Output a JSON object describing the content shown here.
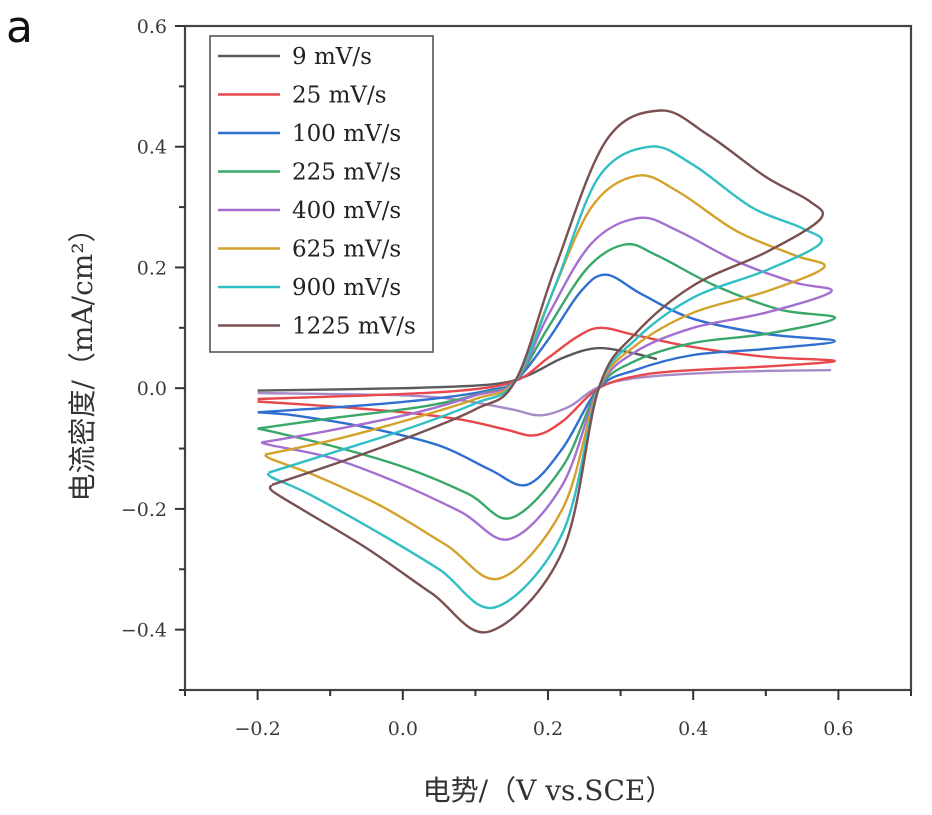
{
  "panel_label": "a",
  "chart_data": {
    "type": "line",
    "title": "",
    "xlabel": "电势/（V vs.SCE）",
    "ylabel": "电流密度/（mA/cm²）",
    "xlim": [
      -0.3,
      0.7
    ],
    "ylim": [
      -0.5,
      0.6
    ],
    "xticks": [
      -0.2,
      0.0,
      0.2,
      0.4,
      0.6
    ],
    "xtick_labels": [
      "-0.2",
      "0.0",
      "0.2",
      "0.4",
      "0.6"
    ],
    "xminor": [
      -0.3,
      -0.1,
      0.1,
      0.3,
      0.5,
      0.7
    ],
    "yticks": [
      -0.4,
      -0.2,
      0.0,
      0.2,
      0.4,
      0.6
    ],
    "ytick_labels": [
      "-0.4",
      "-0.2",
      "0.0",
      "0.2",
      "0.4",
      "0.6"
    ],
    "yminor": [
      -0.5,
      -0.3,
      -0.1,
      0.1,
      0.3,
      0.5
    ],
    "grid": false,
    "legend_position": "top-left",
    "series": [
      {
        "name": "9 mV/s",
        "color": "#5a5a5a",
        "points": [
          [
            -0.2,
            -0.004
          ],
          [
            0.0,
            0.0
          ],
          [
            0.12,
            0.006
          ],
          [
            0.17,
            0.02
          ],
          [
            0.22,
            0.05
          ],
          [
            0.265,
            0.066
          ],
          [
            0.31,
            0.06
          ],
          [
            0.35,
            0.048
          ]
        ]
      },
      {
        "name": "9 mV/s (return)",
        "color": "#a78bc9",
        "legend": false,
        "points": [
          [
            0.59,
            0.03
          ],
          [
            0.45,
            0.027
          ],
          [
            0.33,
            0.018
          ],
          [
            0.27,
            0.002
          ],
          [
            0.23,
            -0.03
          ],
          [
            0.19,
            -0.045
          ],
          [
            0.15,
            -0.035
          ],
          [
            0.08,
            -0.02
          ],
          [
            0.0,
            -0.012
          ],
          [
            -0.2,
            -0.008
          ]
        ]
      },
      {
        "name": "25 mV/s",
        "color": "#e8474b",
        "points": [
          [
            -0.2,
            -0.018
          ],
          [
            -0.05,
            -0.012
          ],
          [
            0.08,
            -0.004
          ],
          [
            0.155,
            0.012
          ],
          [
            0.2,
            0.05
          ],
          [
            0.24,
            0.085
          ],
          [
            0.272,
            0.1
          ],
          [
            0.32,
            0.088
          ],
          [
            0.4,
            0.068
          ],
          [
            0.5,
            0.052
          ],
          [
            0.595,
            0.045
          ],
          [
            0.5,
            0.036
          ],
          [
            0.4,
            0.03
          ],
          [
            0.33,
            0.022
          ],
          [
            0.27,
            0.0
          ],
          [
            0.22,
            -0.055
          ],
          [
            0.182,
            -0.078
          ],
          [
            0.14,
            -0.068
          ],
          [
            0.08,
            -0.052
          ],
          [
            0.0,
            -0.04
          ],
          [
            -0.1,
            -0.03
          ],
          [
            -0.2,
            -0.022
          ]
        ]
      },
      {
        "name": "100 mV/s",
        "color": "#2f6fd0",
        "points": [
          [
            -0.2,
            -0.04
          ],
          [
            -0.05,
            -0.028
          ],
          [
            0.06,
            -0.015
          ],
          [
            0.12,
            -0.003
          ],
          [
            0.155,
            0.012
          ],
          [
            0.2,
            0.08
          ],
          [
            0.245,
            0.16
          ],
          [
            0.28,
            0.188
          ],
          [
            0.33,
            0.155
          ],
          [
            0.4,
            0.115
          ],
          [
            0.5,
            0.09
          ],
          [
            0.595,
            0.078
          ],
          [
            0.5,
            0.065
          ],
          [
            0.4,
            0.055
          ],
          [
            0.32,
            0.03
          ],
          [
            0.27,
            0.0
          ],
          [
            0.22,
            -0.1
          ],
          [
            0.171,
            -0.16
          ],
          [
            0.12,
            -0.135
          ],
          [
            0.05,
            -0.095
          ],
          [
            -0.05,
            -0.065
          ],
          [
            -0.15,
            -0.045
          ],
          [
            -0.2,
            -0.04
          ]
        ]
      },
      {
        "name": "225 mV/s",
        "color": "#3aa86a",
        "points": [
          [
            -0.2,
            -0.067
          ],
          [
            -0.1,
            -0.05
          ],
          [
            0.03,
            -0.03
          ],
          [
            0.11,
            -0.008
          ],
          [
            0.155,
            0.012
          ],
          [
            0.2,
            0.1
          ],
          [
            0.255,
            0.2
          ],
          [
            0.306,
            0.238
          ],
          [
            0.35,
            0.22
          ],
          [
            0.43,
            0.17
          ],
          [
            0.52,
            0.13
          ],
          [
            0.595,
            0.116
          ],
          [
            0.5,
            0.09
          ],
          [
            0.4,
            0.075
          ],
          [
            0.32,
            0.045
          ],
          [
            0.27,
            0.0
          ],
          [
            0.22,
            -0.13
          ],
          [
            0.149,
            -0.215
          ],
          [
            0.09,
            -0.175
          ],
          [
            0.0,
            -0.13
          ],
          [
            -0.1,
            -0.095
          ],
          [
            -0.18,
            -0.072
          ],
          [
            -0.2,
            -0.067
          ]
        ]
      },
      {
        "name": "400 mV/s",
        "color": "#a56fd0",
        "points": [
          [
            -0.195,
            -0.09
          ],
          [
            -0.1,
            -0.07
          ],
          [
            0.02,
            -0.04
          ],
          [
            0.1,
            -0.012
          ],
          [
            0.155,
            0.012
          ],
          [
            0.2,
            0.12
          ],
          [
            0.26,
            0.24
          ],
          [
            0.325,
            0.282
          ],
          [
            0.38,
            0.26
          ],
          [
            0.46,
            0.21
          ],
          [
            0.54,
            0.175
          ],
          [
            0.59,
            0.16
          ],
          [
            0.5,
            0.125
          ],
          [
            0.4,
            0.1
          ],
          [
            0.32,
            0.06
          ],
          [
            0.27,
            0.0
          ],
          [
            0.22,
            -0.16
          ],
          [
            0.147,
            -0.25
          ],
          [
            0.08,
            -0.205
          ],
          [
            -0.01,
            -0.155
          ],
          [
            -0.1,
            -0.115
          ],
          [
            -0.18,
            -0.095
          ],
          [
            -0.195,
            -0.09
          ]
        ]
      },
      {
        "name": "625 mV/s",
        "color": "#d4a12a",
        "points": [
          [
            -0.19,
            -0.11
          ],
          [
            -0.1,
            -0.087
          ],
          [
            0.0,
            -0.055
          ],
          [
            0.1,
            -0.018
          ],
          [
            0.155,
            0.012
          ],
          [
            0.2,
            0.14
          ],
          [
            0.26,
            0.3
          ],
          [
            0.323,
            0.352
          ],
          [
            0.38,
            0.325
          ],
          [
            0.46,
            0.26
          ],
          [
            0.54,
            0.22
          ],
          [
            0.58,
            0.2
          ],
          [
            0.5,
            0.16
          ],
          [
            0.4,
            0.125
          ],
          [
            0.32,
            0.07
          ],
          [
            0.27,
            0.0
          ],
          [
            0.22,
            -0.2
          ],
          [
            0.134,
            -0.315
          ],
          [
            0.06,
            -0.26
          ],
          [
            -0.03,
            -0.195
          ],
          [
            -0.12,
            -0.145
          ],
          [
            -0.18,
            -0.118
          ],
          [
            -0.19,
            -0.11
          ]
        ]
      },
      {
        "name": "900 mV/s",
        "color": "#2fbfc4",
        "points": [
          [
            -0.185,
            -0.14
          ],
          [
            -0.1,
            -0.108
          ],
          [
            0.0,
            -0.07
          ],
          [
            0.1,
            -0.025
          ],
          [
            0.155,
            0.012
          ],
          [
            0.21,
            0.17
          ],
          [
            0.27,
            0.35
          ],
          [
            0.34,
            0.4
          ],
          [
            0.4,
            0.37
          ],
          [
            0.48,
            0.3
          ],
          [
            0.55,
            0.265
          ],
          [
            0.575,
            0.24
          ],
          [
            0.5,
            0.195
          ],
          [
            0.4,
            0.15
          ],
          [
            0.32,
            0.08
          ],
          [
            0.27,
            0.0
          ],
          [
            0.22,
            -0.24
          ],
          [
            0.127,
            -0.363
          ],
          [
            0.05,
            -0.3
          ],
          [
            -0.04,
            -0.235
          ],
          [
            -0.13,
            -0.175
          ],
          [
            -0.18,
            -0.148
          ],
          [
            -0.185,
            -0.14
          ]
        ]
      },
      {
        "name": "1225 mV/s",
        "color": "#7a5050",
        "points": [
          [
            -0.18,
            -0.16
          ],
          [
            -0.1,
            -0.128
          ],
          [
            0.0,
            -0.085
          ],
          [
            0.1,
            -0.035
          ],
          [
            0.155,
            0.012
          ],
          [
            0.21,
            0.2
          ],
          [
            0.28,
            0.41
          ],
          [
            0.355,
            0.46
          ],
          [
            0.42,
            0.42
          ],
          [
            0.5,
            0.35
          ],
          [
            0.56,
            0.31
          ],
          [
            0.575,
            0.28
          ],
          [
            0.5,
            0.225
          ],
          [
            0.4,
            0.17
          ],
          [
            0.32,
            0.09
          ],
          [
            0.27,
            0.0
          ],
          [
            0.22,
            -0.27
          ],
          [
            0.12,
            -0.403
          ],
          [
            0.04,
            -0.34
          ],
          [
            -0.05,
            -0.265
          ],
          [
            -0.14,
            -0.2
          ],
          [
            -0.18,
            -0.17
          ],
          [
            -0.18,
            -0.16
          ]
        ]
      }
    ]
  }
}
